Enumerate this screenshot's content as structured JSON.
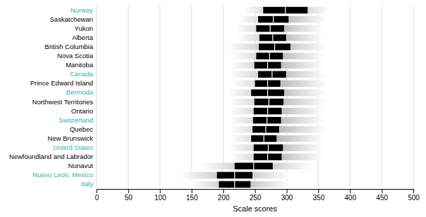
{
  "chart_data": {
    "type": "range",
    "orientation": "horizontal",
    "categories": [
      "Norway",
      "Saskatchewan",
      "Yukon",
      "Alberta",
      "British Columbia",
      "Nova Scotia",
      "Manitoba",
      "Canada",
      "Prince Edward Island",
      "Bermuda",
      "Northwest Territories",
      "Ontario",
      "Switzerland",
      "Quebec",
      "New Brunswick",
      "United States",
      "Newfoundland and Labrador",
      "Nunavut",
      "Nuevo Leon, Mexico",
      "Italy"
    ],
    "label_colors": [
      "#3aafa9",
      "#000000",
      "#000000",
      "#000000",
      "#000000",
      "#000000",
      "#000000",
      "#3aafa9",
      "#000000",
      "#3aafa9",
      "#000000",
      "#000000",
      "#3aafa9",
      "#000000",
      "#000000",
      "#3aafa9",
      "#000000",
      "#000000",
      "#3aafa9",
      "#3aafa9"
    ],
    "values": [
      298,
      279,
      274,
      278,
      281,
      273,
      270,
      277,
      270,
      270,
      272,
      270,
      269,
      267,
      264,
      271,
      270,
      248,
      218,
      218
    ],
    "low": [
      232,
      225,
      220,
      222,
      207,
      215,
      212,
      212,
      215,
      207,
      210,
      210,
      210,
      210,
      210,
      210,
      210,
      165,
      130,
      148
    ],
    "high": [
      368,
      363,
      358,
      358,
      363,
      358,
      358,
      362,
      363,
      363,
      363,
      358,
      358,
      362,
      358,
      358,
      358,
      338,
      305,
      305
    ],
    "inner_low": [
      263,
      255,
      252,
      257,
      256,
      252,
      249,
      255,
      250,
      244,
      249,
      248,
      247,
      246,
      244,
      248,
      248,
      218,
      190,
      193
    ],
    "inner_high": [
      333,
      303,
      296,
      299,
      306,
      294,
      291,
      299,
      290,
      296,
      295,
      292,
      291,
      288,
      284,
      294,
      292,
      278,
      246,
      243
    ],
    "x_label": "Scale scores",
    "xlim": [
      0,
      500
    ],
    "xticks": [
      0,
      50,
      100,
      150,
      200,
      250,
      300,
      350,
      400,
      450,
      500
    ],
    "grid": true
  }
}
